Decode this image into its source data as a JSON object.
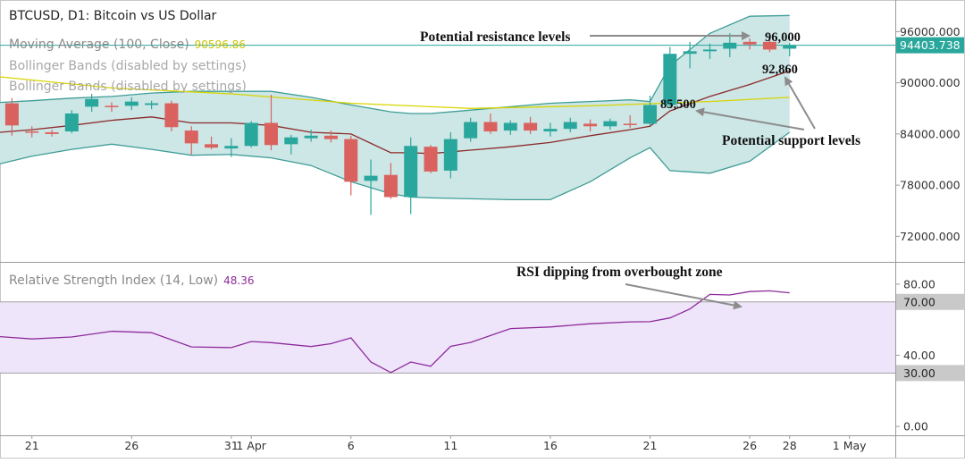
{
  "chart_data": {
    "type": "candlestick",
    "title": "BTCUSD, D1: Bitcoin vs US Dollar",
    "legend": [
      {
        "id": "ma",
        "label": "Moving Average (100, Close)",
        "value": "90596.86",
        "color": "#d8d400"
      },
      {
        "id": "bb1",
        "label": "Bollinger Bands (disabled by settings)",
        "value": "",
        "color": "#9a9a9a"
      },
      {
        "id": "bb2",
        "label": "Bollinger Bands (disabled by settings)",
        "value": "",
        "color": "#9a9a9a"
      }
    ],
    "price_axis": {
      "ylim": [
        69000,
        99500
      ],
      "ticks": [
        96000,
        90000,
        84000,
        78000,
        72000
      ],
      "tick_labels": [
        "96000.000",
        "90000.000",
        "84000.000",
        "78000.000",
        "72000.000"
      ],
      "current_price": 94403.738,
      "current_price_label": "94403.738"
    },
    "x_axis": {
      "tick_labels": [
        {
          "label": "21",
          "day": 0
        },
        {
          "label": "26",
          "day": 5
        },
        {
          "label": "31",
          "day": 10
        },
        {
          "label": "1 Apr",
          "day": 11
        },
        {
          "label": "6",
          "day": 16
        },
        {
          "label": "11",
          "day": 21
        },
        {
          "label": "16",
          "day": 26
        },
        {
          "label": "21",
          "day": 31
        },
        {
          "label": "26",
          "day": 36
        },
        {
          "label": "28",
          "day": 38
        },
        {
          "label": "1 May",
          "day": 41
        }
      ],
      "day_range": [
        -1.6,
        43.3
      ]
    },
    "candles": [
      {
        "day": -1,
        "open": 87600,
        "high": 88200,
        "low": 83800,
        "close": 85000
      },
      {
        "day": 0,
        "open": 84300,
        "high": 84900,
        "low": 83600,
        "close": 84200
      },
      {
        "day": 1,
        "open": 84200,
        "high": 84500,
        "low": 83700,
        "close": 84000
      },
      {
        "day": 2,
        "open": 84300,
        "high": 86800,
        "low": 84100,
        "close": 86400
      },
      {
        "day": 3,
        "open": 87200,
        "high": 88700,
        "low": 86600,
        "close": 88100
      },
      {
        "day": 4,
        "open": 87300,
        "high": 87700,
        "low": 86600,
        "close": 87200
      },
      {
        "day": 5,
        "open": 87300,
        "high": 88300,
        "low": 86800,
        "close": 87800
      },
      {
        "day": 6,
        "open": 87400,
        "high": 87900,
        "low": 86900,
        "close": 87600
      },
      {
        "day": 7,
        "open": 87600,
        "high": 87900,
        "low": 84300,
        "close": 84800
      },
      {
        "day": 8,
        "open": 84400,
        "high": 84900,
        "low": 81600,
        "close": 82900
      },
      {
        "day": 9,
        "open": 82800,
        "high": 83700,
        "low": 82200,
        "close": 82400
      },
      {
        "day": 10,
        "open": 82300,
        "high": 83500,
        "low": 81300,
        "close": 82600
      },
      {
        "day": 11,
        "open": 82600,
        "high": 85500,
        "low": 82400,
        "close": 85300
      },
      {
        "day": 12,
        "open": 85300,
        "high": 88600,
        "low": 82100,
        "close": 82700
      },
      {
        "day": 13,
        "open": 82800,
        "high": 83900,
        "low": 81600,
        "close": 83600
      },
      {
        "day": 14,
        "open": 83500,
        "high": 84500,
        "low": 83100,
        "close": 83800
      },
      {
        "day": 15,
        "open": 83800,
        "high": 84400,
        "low": 83000,
        "close": 83400
      },
      {
        "day": 16,
        "open": 83400,
        "high": 83800,
        "low": 76800,
        "close": 78400
      },
      {
        "day": 17,
        "open": 78500,
        "high": 81000,
        "low": 74500,
        "close": 79100
      },
      {
        "day": 18,
        "open": 79200,
        "high": 80600,
        "low": 76400,
        "close": 76600
      },
      {
        "day": 19,
        "open": 76600,
        "high": 83600,
        "low": 74600,
        "close": 82600
      },
      {
        "day": 20,
        "open": 82500,
        "high": 82700,
        "low": 79400,
        "close": 79600
      },
      {
        "day": 21,
        "open": 79700,
        "high": 84200,
        "low": 78800,
        "close": 83400
      },
      {
        "day": 22,
        "open": 83500,
        "high": 85900,
        "low": 83100,
        "close": 85400
      },
      {
        "day": 23,
        "open": 85400,
        "high": 86400,
        "low": 84000,
        "close": 84300
      },
      {
        "day": 24,
        "open": 84400,
        "high": 85600,
        "low": 83900,
        "close": 85300
      },
      {
        "day": 25,
        "open": 85300,
        "high": 86000,
        "low": 84000,
        "close": 84400
      },
      {
        "day": 26,
        "open": 84300,
        "high": 85300,
        "low": 83700,
        "close": 84600
      },
      {
        "day": 27,
        "open": 84600,
        "high": 85900,
        "low": 84200,
        "close": 85400
      },
      {
        "day": 28,
        "open": 85200,
        "high": 85700,
        "low": 84300,
        "close": 84900
      },
      {
        "day": 29,
        "open": 84900,
        "high": 85800,
        "low": 84500,
        "close": 85500
      },
      {
        "day": 30,
        "open": 85200,
        "high": 86200,
        "low": 84700,
        "close": 85100
      },
      {
        "day": 31,
        "open": 85200,
        "high": 88500,
        "low": 85000,
        "close": 87400
      },
      {
        "day": 32,
        "open": 87400,
        "high": 94200,
        "low": 87000,
        "close": 93400
      },
      {
        "day": 33,
        "open": 93400,
        "high": 94800,
        "low": 91700,
        "close": 93700
      },
      {
        "day": 34,
        "open": 93700,
        "high": 94600,
        "low": 92800,
        "close": 93900
      },
      {
        "day": 35,
        "open": 94000,
        "high": 95800,
        "low": 93000,
        "close": 94700
      },
      {
        "day": 36,
        "open": 94800,
        "high": 95200,
        "low": 93900,
        "close": 94500
      },
      {
        "day": 37,
        "open": 94800,
        "high": 95700,
        "low": 93600,
        "close": 93900
      },
      {
        "day": 38,
        "open": 94000,
        "high": 94700,
        "low": 93100,
        "close": 94400
      }
    ],
    "colors": {
      "up": "#2aa79c",
      "down": "#d9625f",
      "bb_fill": "#cde6e6",
      "bb_line": "#3e9d96",
      "bb_mid": "#8c2a2a",
      "ma": "#d8d400",
      "current_price": "#2aa79c",
      "rsi_line": "#8d2b9a",
      "rsi_zone": "#efe5fb",
      "annotation_arrow": "#8c8c8c"
    },
    "bollinger": {
      "days": [
        -1.6,
        0,
        2,
        4,
        6,
        8,
        10,
        12,
        14,
        16,
        18,
        19,
        20,
        22,
        24,
        26,
        28,
        30,
        31,
        32,
        34,
        36,
        38
      ],
      "upper": [
        87700,
        87900,
        88200,
        88400,
        88800,
        89000,
        89000,
        89000,
        88300,
        87400,
        86600,
        86400,
        86400,
        86800,
        87200,
        87600,
        87800,
        88000,
        87800,
        92000,
        95800,
        97800,
        97900
      ],
      "middle": [
        84200,
        84500,
        85000,
        85600,
        86000,
        85300,
        85300,
        85000,
        84200,
        84000,
        81800,
        81800,
        81700,
        82100,
        82500,
        83000,
        83800,
        84500,
        84900,
        86700,
        88400,
        89800,
        91400
      ],
      "lower": [
        80500,
        81400,
        82200,
        82800,
        82200,
        81500,
        81600,
        81200,
        80300,
        78400,
        77000,
        76600,
        76500,
        76400,
        76300,
        76300,
        78400,
        81200,
        82400,
        79700,
        79400,
        80800,
        84200
      ]
    },
    "moving_average": {
      "days": [
        -1.6,
        4,
        10,
        16,
        22,
        28,
        34,
        38
      ],
      "values": [
        90700,
        89400,
        88700,
        87600,
        87000,
        87300,
        87800,
        88300
      ]
    },
    "rsi": {
      "label": "Relative Strength Index (14, Low)",
      "value": "48.36",
      "ylim": [
        -5,
        92
      ],
      "ticks": [
        80,
        40,
        0
      ],
      "tick_labels": [
        "80.00",
        "40.00",
        "0.00"
      ],
      "levels": [
        70,
        30
      ],
      "level_labels": [
        "70.00",
        "30.00"
      ],
      "days": [
        -1.6,
        0,
        2,
        4,
        6,
        8,
        10,
        11,
        12,
        14,
        15,
        16,
        17,
        18,
        19,
        20,
        21,
        22,
        24,
        26,
        28,
        30,
        31,
        32,
        33,
        34,
        35,
        36,
        37,
        38
      ],
      "values": [
        50.5,
        49.2,
        50.3,
        53.5,
        52.7,
        44.7,
        44.3,
        47.7,
        47.1,
        44.9,
        46.5,
        49.8,
        36.2,
        30.3,
        36.2,
        33.8,
        45.0,
        47.2,
        55.0,
        55.9,
        57.7,
        58.8,
        58.9,
        61.0,
        66.0,
        74.2,
        73.9,
        75.8,
        76.2,
        75.1
      ]
    },
    "annotations": [
      {
        "id": "resistance-label",
        "text": "Potential resistance levels"
      },
      {
        "id": "resistance-96000",
        "text": "96,000"
      },
      {
        "id": "support-92860",
        "text": "92,860"
      },
      {
        "id": "support-85500",
        "text": "85,500"
      },
      {
        "id": "support-label",
        "text": "Potential support levels"
      },
      {
        "id": "rsi-note",
        "text": "RSI dipping from overbought zone"
      }
    ]
  }
}
